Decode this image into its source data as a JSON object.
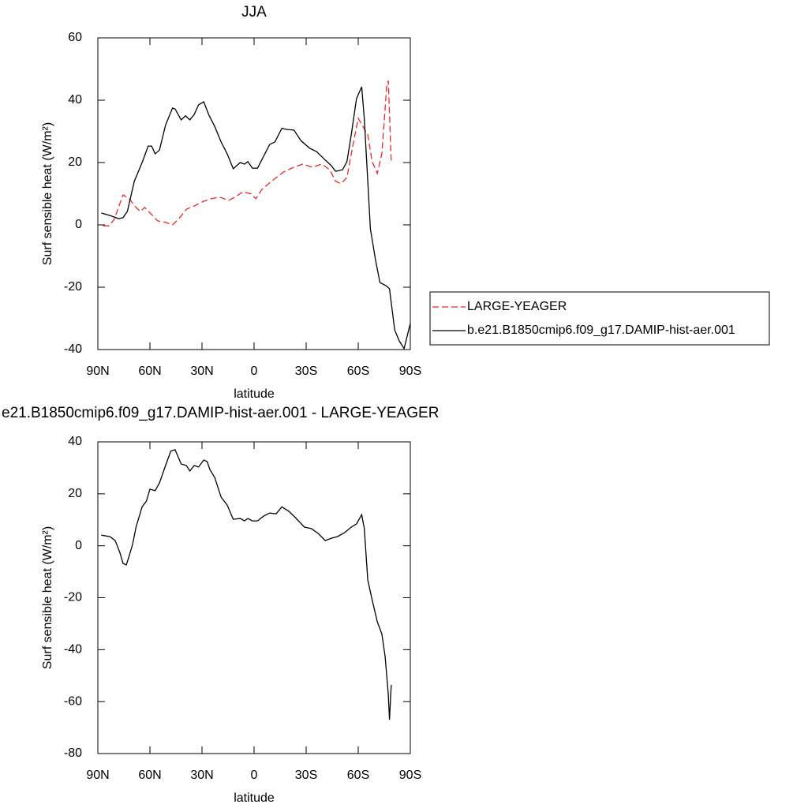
{
  "chart_data": [
    {
      "type": "line",
      "title": "JJA",
      "xlabel": "latitude",
      "ylabel": "Surf sensible heat (W/m²)",
      "xlim": [
        90,
        -90
      ],
      "xticks": [
        {
          "value": 90,
          "label": "90N"
        },
        {
          "value": 60,
          "label": "60N"
        },
        {
          "value": 30,
          "label": "30N"
        },
        0,
        {
          "value": -30,
          "label": "30S"
        },
        {
          "value": -60,
          "label": "60S"
        },
        {
          "value": -90,
          "label": "90S"
        }
      ],
      "ylim": [
        -40,
        60
      ],
      "yticks": [
        -40,
        -20,
        0,
        20,
        40,
        60
      ],
      "legend_position": "right",
      "series": [
        {
          "name": "LARGE-YEAGER",
          "color": "#e8282b",
          "dash": true,
          "x": [
            87,
            83.6,
            80.5,
            78,
            75.5,
            72,
            68,
            65.5,
            63,
            59,
            55.5,
            51,
            47,
            43.6,
            39,
            33.6,
            29,
            24.5,
            20,
            14.5,
            11,
            6.4,
            2,
            -1,
            -4.5,
            -11,
            -17,
            -23,
            -28,
            -33.6,
            -39,
            -43.6,
            -47,
            -50,
            -53.5,
            -56,
            -60,
            -62.7,
            -65.5,
            -68,
            -71,
            -73.6,
            -76.4,
            -77.3,
            -79
          ],
          "values": [
            -0.3,
            -0.3,
            1.8,
            5.8,
            9.6,
            8.4,
            5.6,
            4.3,
            5.6,
            3.3,
            1.3,
            0.8,
            0,
            1.8,
            5,
            6.3,
            7.6,
            8.4,
            8.9,
            7.9,
            8.9,
            10.6,
            10,
            8.4,
            11.4,
            14.4,
            17,
            18.5,
            19.5,
            18.5,
            19.5,
            17.7,
            14,
            13.2,
            15.2,
            22.8,
            34.2,
            31.6,
            29,
            20.3,
            16.5,
            22.8,
            44.3,
            46.3,
            20.3
          ]
        },
        {
          "name": "b.e21.B1850cmip6.f09_g17.DAMIP-hist-aer.001",
          "color": "#000000",
          "dash": false,
          "x": [
            88,
            83,
            78,
            75.5,
            73,
            69,
            64.5,
            61,
            59,
            57,
            54.5,
            51,
            47,
            45.5,
            42,
            39.5,
            37,
            34.5,
            32,
            29,
            26,
            22.7,
            19,
            15.5,
            12,
            8,
            5.5,
            3.6,
            1,
            -2,
            -5.5,
            -9,
            -12,
            -16,
            -19,
            -23,
            -27,
            -32,
            -36,
            -41,
            -44.5,
            -47,
            -51,
            -53.5,
            -56,
            -59,
            -62,
            -63.5,
            -65.5,
            -67,
            -70,
            -72.5,
            -76,
            -78,
            -81,
            -83.6,
            -86.4,
            -90
          ],
          "values": [
            3.8,
            3,
            2,
            2.3,
            4.3,
            14,
            20,
            25.3,
            25.3,
            22.8,
            24,
            32,
            37.5,
            37.2,
            33.7,
            35,
            33.7,
            35.4,
            38.5,
            39.5,
            35.2,
            31.6,
            26.6,
            22.8,
            18,
            20,
            19.5,
            20.3,
            18.2,
            18.2,
            22,
            25.8,
            26.6,
            31,
            30.6,
            30.4,
            27,
            24.6,
            23.5,
            20.8,
            19,
            17.2,
            17.7,
            20.3,
            29,
            40.5,
            44.3,
            34,
            14,
            -1.3,
            -11.4,
            -18.5,
            -19.5,
            -20.5,
            -33.7,
            -37.2,
            -39.7,
            -31.6
          ]
        }
      ]
    },
    {
      "type": "line",
      "title": "e21.B1850cmip6.f09_g17.DAMIP-hist-aer.001 - LARGE-YEAGER",
      "xlabel": "latitude",
      "ylabel": "Surf sensible heat (W/m²)",
      "xlim": [
        90,
        -90
      ],
      "xticks": [
        {
          "value": 90,
          "label": "90N"
        },
        {
          "value": 60,
          "label": "60N"
        },
        {
          "value": 30,
          "label": "30N"
        },
        0,
        {
          "value": -30,
          "label": "30S"
        },
        {
          "value": -60,
          "label": "60S"
        },
        {
          "value": -90,
          "label": "90S"
        }
      ],
      "ylim": [
        -80,
        40
      ],
      "yticks": [
        -80,
        -60,
        -40,
        -20,
        0,
        20,
        40
      ],
      "series": [
        {
          "color": "#000000",
          "dash": false,
          "x": [
            88,
            83,
            80,
            77.3,
            75.5,
            73.6,
            72,
            70,
            68,
            64.5,
            62,
            60,
            57,
            54.5,
            51,
            48,
            45.5,
            42,
            39,
            37,
            34.5,
            32,
            29,
            27,
            25.5,
            22.7,
            19,
            15.5,
            12,
            8,
            5.5,
            3.6,
            1,
            -2,
            -5.5,
            -9,
            -12.7,
            -16,
            -20,
            -23.6,
            -29,
            -33,
            -37,
            -41,
            -44.5,
            -48,
            -52,
            -56,
            -59,
            -62,
            -63.5,
            -65.5,
            -68,
            -71,
            -73.6,
            -75.5,
            -77.3,
            -78,
            -79
          ],
          "values": [
            4.1,
            3.5,
            2,
            -2.6,
            -6.8,
            -7.4,
            -4,
            0.5,
            7.2,
            15,
            17.2,
            21.8,
            21.2,
            24.2,
            30.9,
            36.4,
            37,
            31.5,
            30.9,
            28.8,
            30.9,
            30.3,
            33,
            32.4,
            29.4,
            26.3,
            18.7,
            15.7,
            10.2,
            10.5,
            9.6,
            10.5,
            9.6,
            9.6,
            11.4,
            12.6,
            12.3,
            15,
            13.3,
            11,
            7.2,
            6.6,
            4.7,
            2,
            2.9,
            3.5,
            5,
            7.2,
            8.4,
            12,
            6.6,
            -13.2,
            -20.8,
            -29.3,
            -33.9,
            -42.7,
            -57.3,
            -67,
            -53.6
          ]
        }
      ]
    }
  ]
}
